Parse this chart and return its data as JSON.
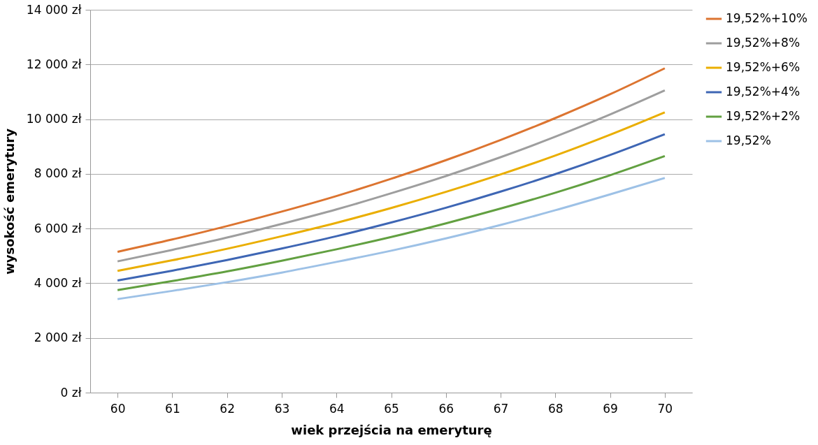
{
  "chart_data": {
    "type": "line",
    "xlabel": "wiek przejścia na emeryturę",
    "ylabel": "wysokość emerytury",
    "categories": [
      "60",
      "61",
      "62",
      "63",
      "64",
      "65",
      "66",
      "67",
      "68",
      "69",
      "70"
    ],
    "series": [
      {
        "name": "19,52%+10%",
        "color": "#dc7430",
        "values": [
          5150,
          5600,
          6090,
          6620,
          7190,
          7820,
          8500,
          9240,
          10040,
          10910,
          11860
        ]
      },
      {
        "name": "19,52%+8%",
        "color": "#9e9e9e",
        "values": [
          4800,
          5220,
          5670,
          6170,
          6700,
          7290,
          7920,
          8610,
          9360,
          10170,
          11050
        ]
      },
      {
        "name": "19,52%+6%",
        "color": "#eaae00",
        "values": [
          4450,
          4840,
          5260,
          5720,
          6210,
          6750,
          7340,
          7980,
          8670,
          9430,
          10250
        ]
      },
      {
        "name": "19,52%+4%",
        "color": "#3e66b4",
        "values": [
          4100,
          4460,
          4850,
          5270,
          5720,
          6220,
          6760,
          7350,
          7990,
          8690,
          9450
        ]
      },
      {
        "name": "19,52%+2%",
        "color": "#62a041",
        "values": [
          3750,
          4080,
          4430,
          4820,
          5240,
          5690,
          6190,
          6730,
          7310,
          7950,
          8650
        ]
      },
      {
        "name": "19,52%",
        "color": "#9dc1e6",
        "values": [
          3420,
          3720,
          4040,
          4390,
          4780,
          5190,
          5640,
          6130,
          6670,
          7250,
          7850
        ]
      }
    ],
    "ylim": [
      0,
      14000
    ],
    "yticks": [
      {
        "value": 0,
        "label": "0 zł"
      },
      {
        "value": 2000,
        "label": "2 000 zł"
      },
      {
        "value": 4000,
        "label": "4 000 zł"
      },
      {
        "value": 6000,
        "label": "6 000 zł"
      },
      {
        "value": 8000,
        "label": "8 000 zł"
      },
      {
        "value": 10000,
        "label": "10 000 zł"
      },
      {
        "value": 12000,
        "label": "12 000 zł"
      },
      {
        "value": 14000,
        "label": "14 000 zł"
      }
    ],
    "grid": "y",
    "legend": "right",
    "marker": "none",
    "line_style": "solid"
  }
}
